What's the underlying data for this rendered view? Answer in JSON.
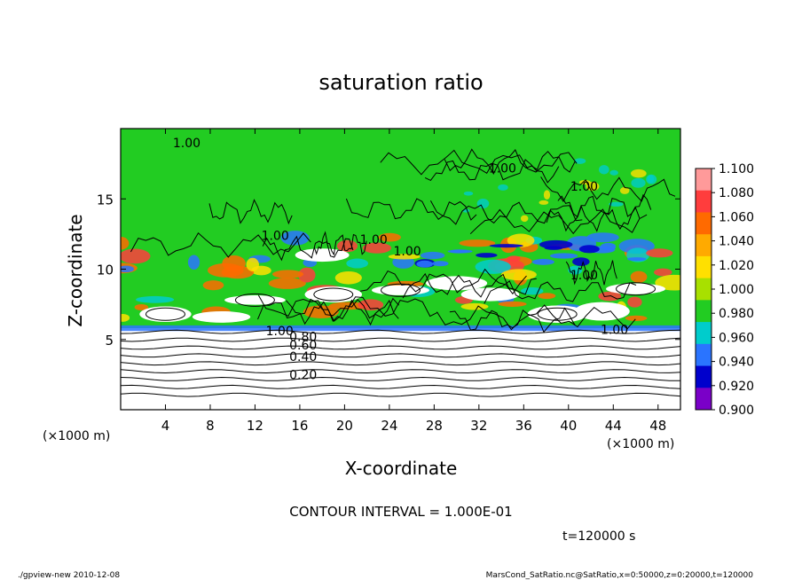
{
  "chart_data": {
    "type": "heatmap",
    "title": "saturation ratio",
    "xlabel": "X-coordinate",
    "ylabel": "Z-coordinate",
    "x_unit_left": "(×1000 m)",
    "x_unit_right": "(×1000 m)",
    "xlim": [
      0,
      50
    ],
    "ylim": [
      0,
      20
    ],
    "xticks": [
      4,
      8,
      12,
      16,
      20,
      24,
      28,
      32,
      36,
      40,
      44,
      48
    ],
    "yticks": [
      5,
      10,
      15
    ],
    "colorbar": {
      "levels": [
        "1.100",
        "1.080",
        "1.060",
        "1.040",
        "1.020",
        "1.000",
        "0.980",
        "0.960",
        "0.940",
        "0.920",
        "0.900"
      ],
      "colors": [
        "#ff9a9a",
        "#ff3d3d",
        "#ff6a00",
        "#ffaa00",
        "#ffe000",
        "#a8e000",
        "#22cc22",
        "#00cccc",
        "#2a74ff",
        "#0000cc",
        "#7a00c8"
      ]
    },
    "contour_labels": [
      {
        "text": "1.00",
        "x": 5.9,
        "z": 19.0
      },
      {
        "text": "1.00",
        "x": 34.1,
        "z": 17.2
      },
      {
        "text": "1.00",
        "x": 41.4,
        "z": 15.9
      },
      {
        "text": "1.00",
        "x": 13.8,
        "z": 12.4
      },
      {
        "text": "1.00",
        "x": 22.6,
        "z": 12.1
      },
      {
        "text": "1.00",
        "x": 25.6,
        "z": 11.3
      },
      {
        "text": "1.00",
        "x": 41.4,
        "z": 9.6
      },
      {
        "text": "1.00",
        "x": 14.2,
        "z": 5.6
      },
      {
        "text": "1.00",
        "x": 44.1,
        "z": 5.7
      },
      {
        "text": "0.80",
        "x": 16.3,
        "z": 5.2
      },
      {
        "text": "0.60",
        "x": 16.3,
        "z": 4.6
      },
      {
        "text": "0.40",
        "x": 16.3,
        "z": 3.8
      },
      {
        "text": "0.20",
        "x": 16.3,
        "z": 2.5
      }
    ],
    "contour_levels_lower": [
      0.1,
      0.2,
      0.3,
      0.4,
      0.5,
      0.6,
      0.7,
      0.8,
      0.9
    ],
    "contour_interval_text": "CONTOUR INTERVAL = 1.000E-01",
    "time_text": "t=120000 s"
  },
  "footer": {
    "left": "./gpview-new 2010-12-08",
    "right": "MarsCond_SatRatio.nc@SatRatio,x=0:50000,z=0:20000,t=120000"
  }
}
